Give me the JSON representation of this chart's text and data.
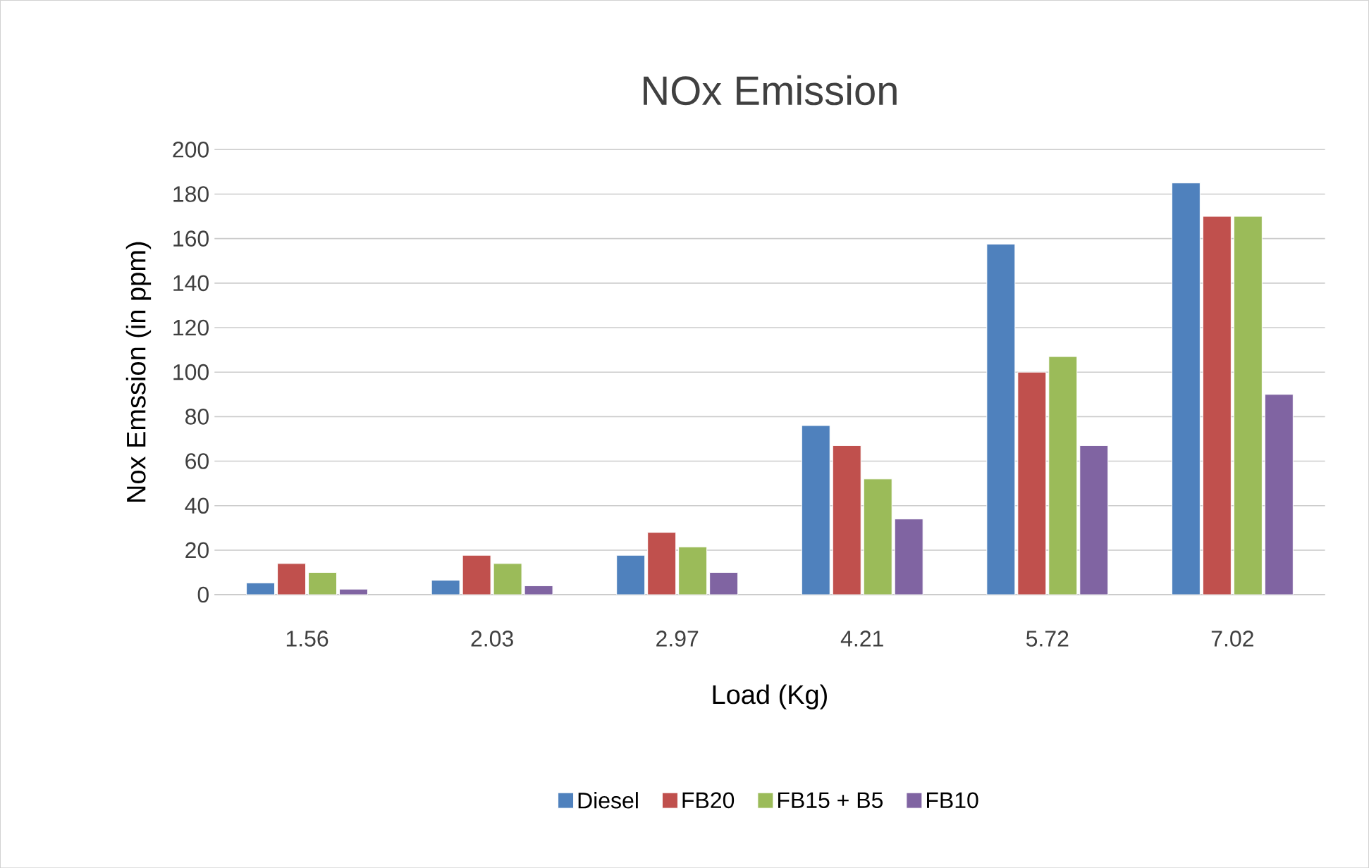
{
  "chart_data": {
    "type": "bar",
    "title": "NOx Emission",
    "xlabel": "Load (Kg)",
    "ylabel": "Nox Emssion  (in ppm)",
    "categories": [
      "1.56",
      "2.03",
      "2.97",
      "4.21",
      "5.72",
      "7.02"
    ],
    "series": [
      {
        "name": "Diesel",
        "color": "#4f81bd",
        "values": [
          5.3,
          6.5,
          17.7,
          76,
          157.5,
          185
        ]
      },
      {
        "name": "FB20",
        "color": "#c0504d",
        "values": [
          14,
          17.7,
          28,
          67,
          100,
          170
        ]
      },
      {
        "name": "FB15 + B5",
        "color": "#9bbb59",
        "values": [
          10,
          14,
          21.5,
          52,
          107,
          170
        ]
      },
      {
        "name": "FB10",
        "color": "#8064a2",
        "values": [
          2.5,
          4,
          10,
          34,
          67,
          90
        ]
      }
    ],
    "ylim": [
      0,
      200
    ],
    "yticks": [
      0,
      20,
      40,
      60,
      80,
      100,
      120,
      140,
      160,
      180,
      200
    ],
    "grid": "y",
    "legend": "bottom"
  }
}
